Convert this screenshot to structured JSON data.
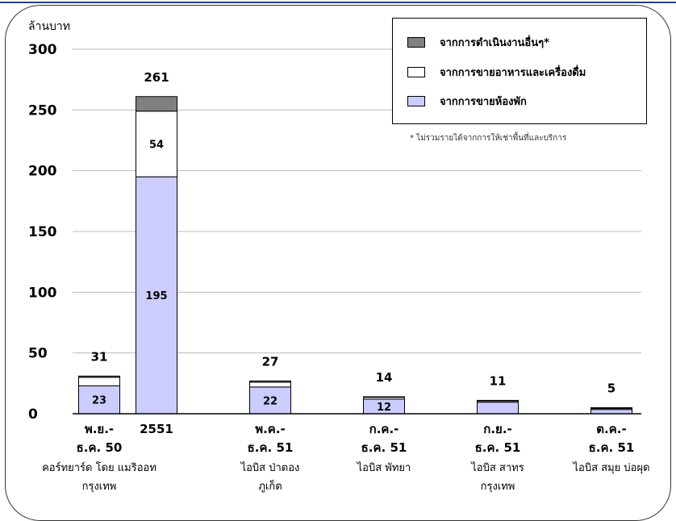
{
  "chart_data": {
    "type": "bar",
    "stacked": true,
    "ylabel": "ล้านบาท",
    "ylim": [
      0,
      300
    ],
    "yticks": [
      0,
      50,
      100,
      150,
      200,
      250,
      300
    ],
    "grid": true,
    "legend_position": "top-right",
    "categories": [
      [
        "พ.ย.-",
        "ธ.ค. 50",
        "คอร์ทยาร์ด โดย แมริออท",
        "กรุงเทพ"
      ],
      [
        "2551",
        "",
        "",
        ""
      ],
      [
        "พ.ค.-",
        "ธ.ค. 51",
        "ไอบิส ป่าตอง",
        "ภูเก็ต"
      ],
      [
        "ก.ค.-",
        "ธ.ค. 51",
        "ไอบิส พัทยา",
        ""
      ],
      [
        "ก.ย.-",
        "ธ.ค. 51",
        "ไอบิส สาทร",
        "กรุงเทพ"
      ],
      [
        "ต.ค.-",
        "ธ.ค. 51",
        "ไอบิส สมุย บ่อผุด",
        ""
      ]
    ],
    "series": [
      {
        "name": "จากการขายห้องพัก",
        "color": "#ccccff",
        "values": [
          23,
          195,
          22,
          12,
          9.5,
          3.5
        ],
        "labels": [
          "23",
          "195",
          "22",
          "12",
          "",
          ""
        ]
      },
      {
        "name": "จากการขายอาหารและเครื่องดื่ม",
        "color": "#ffffff",
        "values": [
          7,
          54,
          4,
          1.5,
          1,
          0.8
        ],
        "labels": [
          "",
          "54",
          "",
          "",
          "",
          ""
        ]
      },
      {
        "name": "จากการดำเนินงานอื่นๆ*",
        "color": "#808080",
        "values": [
          1,
          12,
          1,
          0.5,
          0.5,
          0.7
        ],
        "labels": [
          "",
          "",
          "",
          "",
          "",
          ""
        ]
      }
    ],
    "totals": [
      "31",
      "261",
      "27",
      "14",
      "11",
      "5"
    ],
    "note": "* ไม่รวมรายได้จากการให้เช่าพื้นที่และบริการ",
    "colors": {
      "frame": "#333333",
      "top_line": "#1f3d99",
      "grid": "#bbbbbb"
    }
  }
}
